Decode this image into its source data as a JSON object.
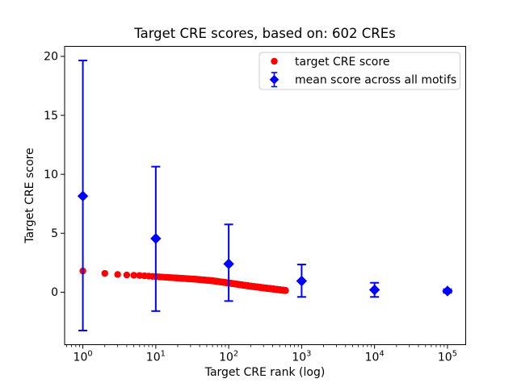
{
  "figure": {
    "background": "#ffffff"
  },
  "chart_data": {
    "type": "scatter",
    "title": "Target CRE scores, based on: 602 CREs",
    "xlabel": "Target CRE rank (log)",
    "ylabel": "Target CRE score",
    "x_scale": "log10",
    "xlim_log10": [
      -0.25,
      5.25
    ],
    "ylim": [
      -4.45,
      20.85
    ],
    "x_ticks": [
      1,
      10,
      100,
      1000,
      10000,
      100000
    ],
    "y_ticks": [
      0,
      5,
      10,
      15,
      20
    ],
    "grid": false,
    "legend": {
      "position": "upper right",
      "labels": [
        "target CRE score",
        "mean score across all motifs"
      ]
    },
    "series": [
      {
        "name": "target CRE score",
        "marker": "circle",
        "color": "#ff0000",
        "count": 602,
        "note": "602 points at ranks 1..602; score interpolated in log10(rank) through anchors",
        "anchors": [
          [
            1,
            1.8
          ],
          [
            2,
            1.6
          ],
          [
            3,
            1.5
          ],
          [
            4,
            1.46
          ],
          [
            6,
            1.42
          ],
          [
            10,
            1.32
          ],
          [
            20,
            1.2
          ],
          [
            35,
            1.1
          ],
          [
            60,
            0.97
          ],
          [
            100,
            0.78
          ],
          [
            180,
            0.55
          ],
          [
            300,
            0.37
          ],
          [
            450,
            0.24
          ],
          [
            602,
            0.14
          ]
        ]
      },
      {
        "name": "mean score across all motifs",
        "marker": "diamond",
        "color": "#0000ff",
        "points": [
          {
            "x": 1,
            "y": 8.15,
            "err_low": 11.4,
            "err_high": 11.5
          },
          {
            "x": 10,
            "y": 4.55,
            "err_low": 6.15,
            "err_high": 6.1
          },
          {
            "x": 100,
            "y": 2.4,
            "err_low": 3.15,
            "err_high": 3.35
          },
          {
            "x": 1000,
            "y": 0.95,
            "err_low": 1.35,
            "err_high": 1.4
          },
          {
            "x": 10000,
            "y": 0.2,
            "err_low": 0.6,
            "err_high": 0.6
          },
          {
            "x": 100000,
            "y": 0.1,
            "err_low": 0.15,
            "err_high": 0.15
          }
        ]
      }
    ]
  }
}
